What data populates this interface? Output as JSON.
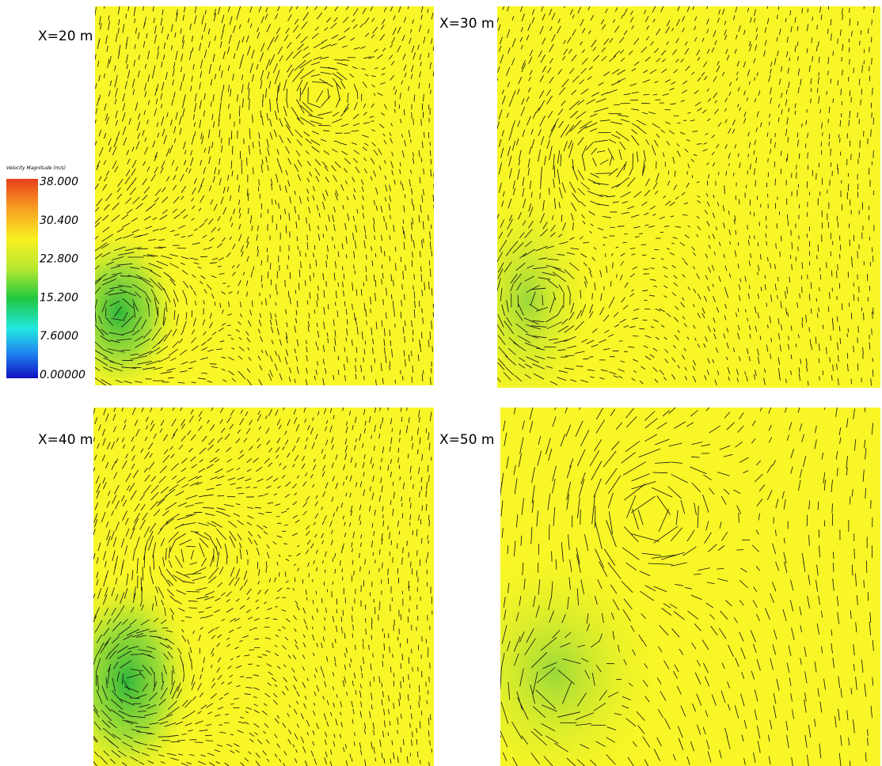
{
  "panels": [
    {
      "label": "X=20 m"
    },
    {
      "label": "X=30 m"
    },
    {
      "label": "X=40 m"
    },
    {
      "label": "X=50 m"
    }
  ],
  "colorbar": {
    "title": "Velocity Magnitude (m/s)",
    "labels": [
      "38.000",
      "30.400",
      "22.800",
      "15.200",
      "7.6000",
      "0.00000"
    ]
  }
}
